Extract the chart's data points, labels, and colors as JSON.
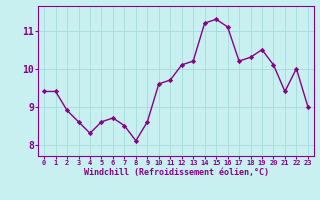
{
  "x": [
    0,
    1,
    2,
    3,
    4,
    5,
    6,
    7,
    8,
    9,
    10,
    11,
    12,
    13,
    14,
    15,
    16,
    17,
    18,
    19,
    20,
    21,
    22,
    23
  ],
  "y": [
    9.4,
    9.4,
    8.9,
    8.6,
    8.3,
    8.6,
    8.7,
    8.5,
    8.1,
    8.6,
    9.6,
    9.7,
    10.1,
    10.2,
    11.2,
    11.3,
    11.1,
    10.2,
    10.3,
    10.5,
    10.1,
    9.4,
    10.0,
    9.0
  ],
  "line_color": "#880088",
  "marker": "D",
  "marker_size": 2.2,
  "bg_color": "#c8f0f0",
  "grid_color": "#aadddd",
  "xlabel": "Windchill (Refroidissement éolien,°C)",
  "xlabel_color": "#880088",
  "tick_color": "#880088",
  "ylim": [
    7.7,
    11.65
  ],
  "yticks": [
    8,
    9,
    10,
    11
  ],
  "xticks": [
    0,
    1,
    2,
    3,
    4,
    5,
    6,
    7,
    8,
    9,
    10,
    11,
    12,
    13,
    14,
    15,
    16,
    17,
    18,
    19,
    20,
    21,
    22,
    23
  ],
  "spine_color": "#880088",
  "line_width": 1.0
}
